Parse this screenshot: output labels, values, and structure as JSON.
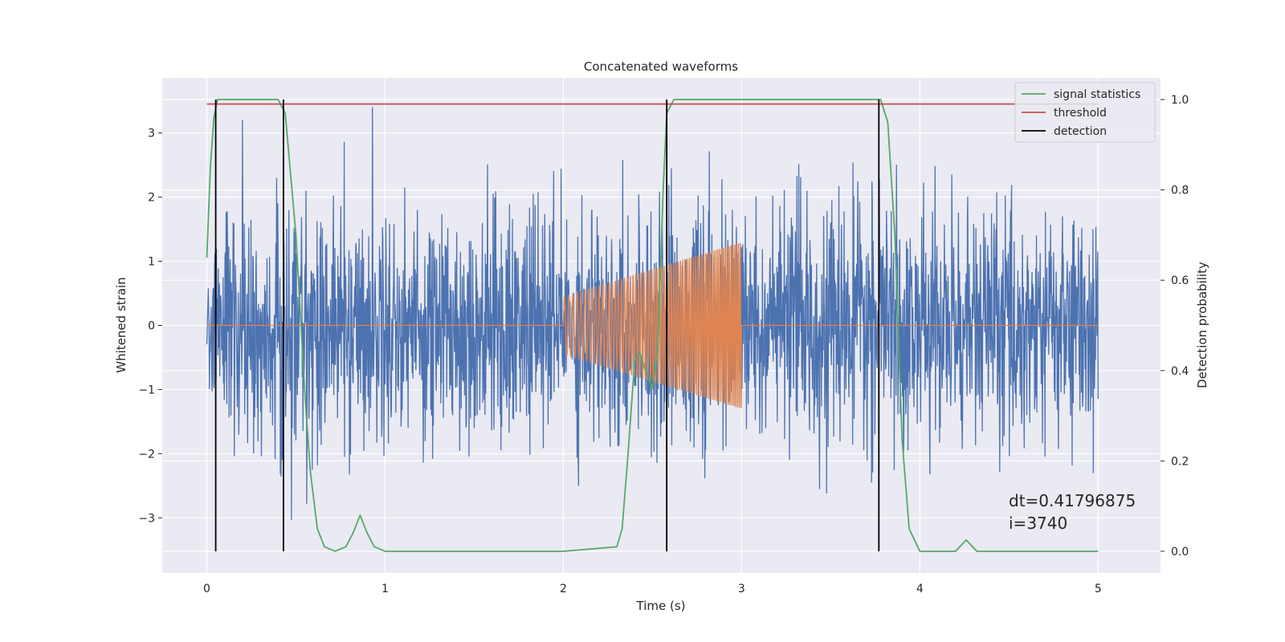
{
  "chart_data": {
    "type": "line",
    "title": "Concatenated waveforms",
    "xlabel": "Time (s)",
    "ylabel": "Whitened strain",
    "ylabel_right": "Detection probability",
    "xlim": [
      -0.25,
      5.35
    ],
    "ylim": [
      -3.86,
      3.86
    ],
    "ylim_right": [
      -0.048,
      1.048
    ],
    "x_ticks": [
      0,
      1,
      2,
      3,
      4,
      5
    ],
    "x_tick_labels": [
      "0",
      "1",
      "2",
      "3",
      "4",
      "5"
    ],
    "y_ticks": [
      -3,
      -2,
      -1,
      0,
      1,
      2,
      3
    ],
    "y_tick_labels": [
      "−3",
      "−2",
      "−1",
      "0",
      "1",
      "2",
      "3"
    ],
    "y_ticks_right": [
      0.0,
      0.2,
      0.4,
      0.6,
      0.8,
      1.0
    ],
    "y_tick_labels_right": [
      "0.0",
      "0.2",
      "0.4",
      "0.6",
      "0.8",
      "1.0"
    ],
    "grid": true,
    "legend_position": "top-right",
    "legend": [
      {
        "label": "signal statistics",
        "color": "#55a868"
      },
      {
        "label": "threshold",
        "color": "#c44e52"
      },
      {
        "label": "detection",
        "color": "#000000"
      }
    ],
    "series": [
      {
        "kind": "noise",
        "color": "#4c72b0",
        "x_range": [
          0,
          5
        ],
        "amplitude_sigma": 0.9,
        "peak_abs": 3.5
      },
      {
        "kind": "chirp",
        "color": "#dd8452",
        "x_range": [
          0,
          5
        ],
        "active_range": [
          2.0,
          3.0
        ],
        "start_amplitude": 0.45,
        "end_amplitude": 1.3
      },
      {
        "name": "signal statistics",
        "axis": "right",
        "color": "#55a868",
        "x": [
          0,
          0.02,
          0.04,
          0.06,
          0.1,
          0.2,
          0.4,
          0.44,
          0.5,
          0.55,
          0.58,
          0.62,
          0.66,
          0.72,
          0.78,
          0.82,
          0.86,
          0.9,
          0.94,
          1.0,
          2.0,
          2.3,
          2.33,
          2.36,
          2.4,
          2.43,
          2.46,
          2.5,
          2.53,
          2.56,
          2.58,
          2.62,
          3.0,
          3.78,
          3.82,
          3.86,
          3.9,
          3.94,
          4.0,
          4.2,
          4.26,
          4.32,
          4.5,
          5.0
        ],
        "y": [
          0.65,
          0.85,
          0.96,
          1.0,
          1.0,
          1.0,
          1.0,
          0.97,
          0.7,
          0.35,
          0.18,
          0.05,
          0.01,
          0.0,
          0.01,
          0.04,
          0.08,
          0.04,
          0.01,
          0.0,
          0.0,
          0.01,
          0.05,
          0.2,
          0.42,
          0.44,
          0.4,
          0.36,
          0.45,
          0.8,
          0.97,
          1.0,
          1.0,
          1.0,
          0.95,
          0.7,
          0.25,
          0.05,
          0.0,
          0.0,
          0.025,
          0.0,
          0.0,
          0.0
        ]
      },
      {
        "name": "threshold",
        "axis": "right",
        "color": "#c44e52",
        "x": [
          0,
          5
        ],
        "y": [
          0.99,
          0.99
        ]
      },
      {
        "name": "detection",
        "axis": "right",
        "color": "#000000",
        "type": "vlines",
        "x": [
          0.05,
          0.43,
          2.58,
          3.77
        ],
        "ymin": 0.0,
        "ymax": 1.0
      }
    ],
    "annotation": "dt=0.41796875\n i=3740"
  }
}
